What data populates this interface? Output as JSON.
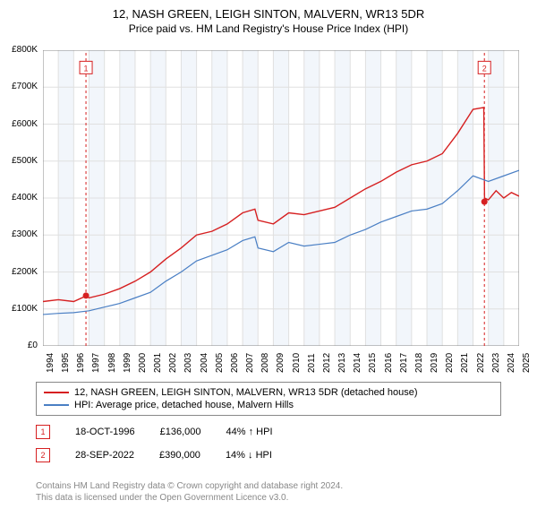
{
  "title": "12, NASH GREEN, LEIGH SINTON, MALVERN, WR13 5DR",
  "subtitle": "Price paid vs. HM Land Registry's House Price Index (HPI)",
  "chart": {
    "type": "line",
    "background_color": "#ffffff",
    "grid_color": "#e0e0e0",
    "band_color": "#f2f6fb",
    "xlim": [
      1994,
      2025
    ],
    "ylim": [
      0,
      800000
    ],
    "ytick_step": 100000,
    "yticks": [
      "£0",
      "£100K",
      "£200K",
      "£300K",
      "£400K",
      "£500K",
      "£600K",
      "£700K",
      "£800K"
    ],
    "xticks": [
      1994,
      1995,
      1996,
      1997,
      1998,
      1999,
      2000,
      2001,
      2002,
      2003,
      2004,
      2005,
      2006,
      2007,
      2008,
      2009,
      2010,
      2011,
      2012,
      2013,
      2014,
      2015,
      2016,
      2017,
      2018,
      2019,
      2020,
      2021,
      2022,
      2023,
      2024,
      2025
    ],
    "axis_fontsize": 10,
    "series": [
      {
        "name": "price_paid",
        "color": "#d62021",
        "width": 1.4,
        "points": [
          [
            1994,
            120
          ],
          [
            1995,
            125
          ],
          [
            1996,
            120
          ],
          [
            1996.8,
            135
          ],
          [
            1997,
            130
          ],
          [
            1998,
            140
          ],
          [
            1999,
            155
          ],
          [
            2000,
            175
          ],
          [
            2001,
            200
          ],
          [
            2002,
            235
          ],
          [
            2003,
            265
          ],
          [
            2004,
            300
          ],
          [
            2005,
            310
          ],
          [
            2006,
            330
          ],
          [
            2007,
            360
          ],
          [
            2007.8,
            370
          ],
          [
            2008,
            340
          ],
          [
            2009,
            330
          ],
          [
            2010,
            360
          ],
          [
            2011,
            355
          ],
          [
            2012,
            365
          ],
          [
            2013,
            375
          ],
          [
            2014,
            400
          ],
          [
            2015,
            425
          ],
          [
            2016,
            445
          ],
          [
            2017,
            470
          ],
          [
            2018,
            490
          ],
          [
            2019,
            500
          ],
          [
            2020,
            520
          ],
          [
            2021,
            575
          ],
          [
            2022,
            640
          ],
          [
            2022.7,
            645
          ],
          [
            2022.75,
            400
          ],
          [
            2023,
            395
          ],
          [
            2023.5,
            420
          ],
          [
            2024,
            400
          ],
          [
            2024.5,
            415
          ],
          [
            2025,
            405
          ]
        ]
      },
      {
        "name": "hpi",
        "color": "#4a7fc4",
        "width": 1.2,
        "points": [
          [
            1994,
            85
          ],
          [
            1995,
            88
          ],
          [
            1996,
            90
          ],
          [
            1997,
            95
          ],
          [
            1998,
            105
          ],
          [
            1999,
            115
          ],
          [
            2000,
            130
          ],
          [
            2001,
            145
          ],
          [
            2002,
            175
          ],
          [
            2003,
            200
          ],
          [
            2004,
            230
          ],
          [
            2005,
            245
          ],
          [
            2006,
            260
          ],
          [
            2007,
            285
          ],
          [
            2007.8,
            295
          ],
          [
            2008,
            265
          ],
          [
            2009,
            255
          ],
          [
            2010,
            280
          ],
          [
            2011,
            270
          ],
          [
            2012,
            275
          ],
          [
            2013,
            280
          ],
          [
            2014,
            300
          ],
          [
            2015,
            315
          ],
          [
            2016,
            335
          ],
          [
            2017,
            350
          ],
          [
            2018,
            365
          ],
          [
            2019,
            370
          ],
          [
            2020,
            385
          ],
          [
            2021,
            420
          ],
          [
            2022,
            460
          ],
          [
            2023,
            445
          ],
          [
            2024,
            460
          ],
          [
            2025,
            475
          ]
        ]
      }
    ],
    "sale_markers": [
      {
        "n": "1",
        "year": 1996.8,
        "price": 136000,
        "color": "#d62021",
        "line_top_y": 800,
        "label_y": 770
      },
      {
        "n": "2",
        "year": 2022.74,
        "price": 390000,
        "color": "#d62021",
        "line_top_y": 800,
        "label_y": 770
      }
    ],
    "marker_dash": "3,3"
  },
  "legend": {
    "items": [
      {
        "color": "#d62021",
        "label": "12, NASH GREEN, LEIGH SINTON, MALVERN, WR13 5DR (detached house)"
      },
      {
        "color": "#4a7fc4",
        "label": "HPI: Average price, detached house, Malvern Hills"
      }
    ]
  },
  "sales": [
    {
      "n": "1",
      "color": "#d62021",
      "date": "18-OCT-1996",
      "price": "£136,000",
      "delta": "44% ↑ HPI"
    },
    {
      "n": "2",
      "color": "#d62021",
      "date": "28-SEP-2022",
      "price": "£390,000",
      "delta": "14% ↓ HPI"
    }
  ],
  "footer": {
    "line1": "Contains HM Land Registry data © Crown copyright and database right 2024.",
    "line2": "This data is licensed under the Open Government Licence v3.0."
  }
}
